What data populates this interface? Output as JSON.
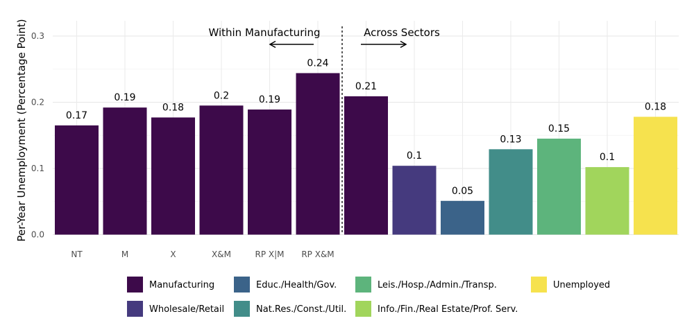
{
  "chart_data": {
    "type": "bar",
    "title": "",
    "xlabel": "",
    "ylabel": "Per-Year Unemployment (Percentage Point)",
    "ylim": [
      0,
      0.32
    ],
    "yticks": [
      "0.0",
      "0.1",
      "0.2",
      "0.3"
    ],
    "grid": true,
    "legend_position": "bottom",
    "bars": [
      {
        "category": "NT",
        "value": 0.165,
        "label": "0.17",
        "series": "Manufacturing"
      },
      {
        "category": "M",
        "value": 0.192,
        "label": "0.19",
        "series": "Manufacturing"
      },
      {
        "category": "X",
        "value": 0.177,
        "label": "0.18",
        "series": "Manufacturing"
      },
      {
        "category": "X&M",
        "value": 0.195,
        "label": "0.2",
        "series": "Manufacturing"
      },
      {
        "category": "RP X|M",
        "value": 0.189,
        "label": "0.19",
        "series": "Manufacturing"
      },
      {
        "category": "RP X&M",
        "value": 0.244,
        "label": "0.24",
        "series": "Manufacturing"
      },
      {
        "category": "",
        "value": 0.209,
        "label": "0.21",
        "series": "Manufacturing"
      },
      {
        "category": "",
        "value": 0.104,
        "label": "0.1",
        "series": "Wholesale/Retail"
      },
      {
        "category": "",
        "value": 0.051,
        "label": "0.05",
        "series": "Educ./Health/Gov."
      },
      {
        "category": "",
        "value": 0.129,
        "label": "0.13",
        "series": "Nat.Res./Const./Util."
      },
      {
        "category": "",
        "value": 0.145,
        "label": "0.15",
        "series": "Leis./Hosp./Admin./Transp."
      },
      {
        "category": "",
        "value": 0.102,
        "label": "0.1",
        "series": "Info./Fin./Real Estate/Prof. Serv."
      },
      {
        "category": "",
        "value": 0.178,
        "label": "0.18",
        "series": "Unemployed"
      }
    ],
    "legend": [
      {
        "name": "Manufacturing",
        "color": "#3d0a4a"
      },
      {
        "name": "Wholesale/Retail",
        "color": "#453a7e"
      },
      {
        "name": "Educ./Health/Gov.",
        "color": "#3b6389"
      },
      {
        "name": "Nat.Res./Const./Util.",
        "color": "#428d89"
      },
      {
        "name": "Leis./Hosp./Admin./Transp.",
        "color": "#5db47c"
      },
      {
        "name": "Info./Fin./Real Estate/Prof. Serv.",
        "color": "#a1d55c"
      },
      {
        "name": "Unemployed",
        "color": "#f6e24e"
      }
    ],
    "annotations": {
      "within": "Within Manufacturing",
      "across": "Across Sectors"
    }
  }
}
